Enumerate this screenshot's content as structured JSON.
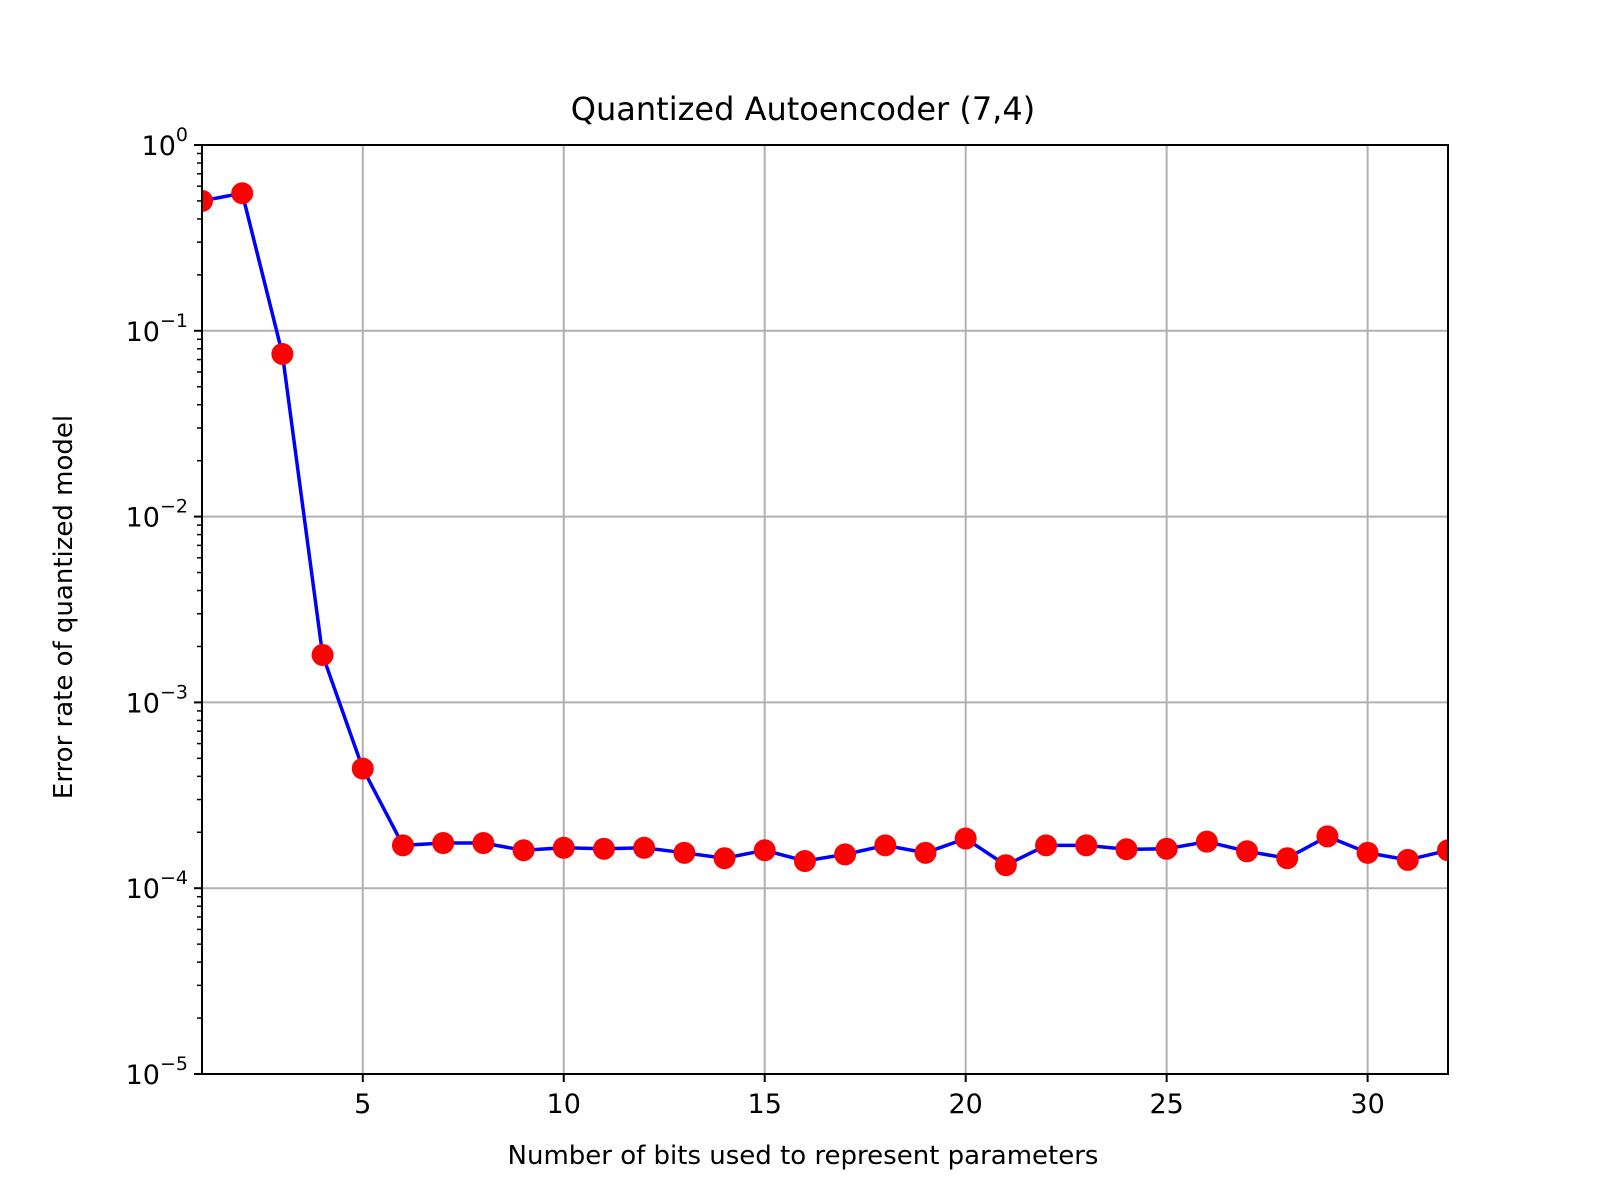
{
  "chart_data": {
    "type": "line",
    "title": "Quantized Autoencoder (7,4)",
    "xlabel": "Number of bits used to represent parameters",
    "ylabel": "Error rate of quantized model",
    "xlim": [
      1,
      32
    ],
    "ylim": [
      1e-05,
      1
    ],
    "yscale": "log",
    "grid": true,
    "x_ticks": [
      5,
      10,
      15,
      20,
      25,
      30
    ],
    "y_ticks": [
      {
        "value": 1,
        "base": "10",
        "exp": "0"
      },
      {
        "value": 0.1,
        "base": "10",
        "exp": "−1"
      },
      {
        "value": 0.01,
        "base": "10",
        "exp": "−2"
      },
      {
        "value": 0.001,
        "base": "10",
        "exp": "−3"
      },
      {
        "value": 0.0001,
        "base": "10",
        "exp": "−4"
      },
      {
        "value": 1e-05,
        "base": "10",
        "exp": "−5"
      }
    ],
    "series": [
      {
        "line_color": "#0000ff",
        "marker_color": "#ff0000",
        "x": [
          1,
          2,
          3,
          4,
          5,
          6,
          7,
          8,
          9,
          10,
          11,
          12,
          13,
          14,
          15,
          16,
          17,
          18,
          19,
          20,
          21,
          22,
          23,
          24,
          25,
          26,
          27,
          28,
          29,
          30,
          31,
          32
        ],
        "y": [
          0.5,
          0.55,
          0.075,
          0.0018,
          0.00044,
          0.00017,
          0.000175,
          0.000175,
          0.00016,
          0.000165,
          0.000163,
          0.000165,
          0.000155,
          0.000145,
          0.00016,
          0.00014,
          0.000152,
          0.00017,
          0.000155,
          0.000185,
          0.000133,
          0.00017,
          0.00017,
          0.000162,
          0.000163,
          0.000178,
          0.000158,
          0.000145,
          0.00019,
          0.000155,
          0.000142,
          0.00016
        ]
      }
    ]
  }
}
